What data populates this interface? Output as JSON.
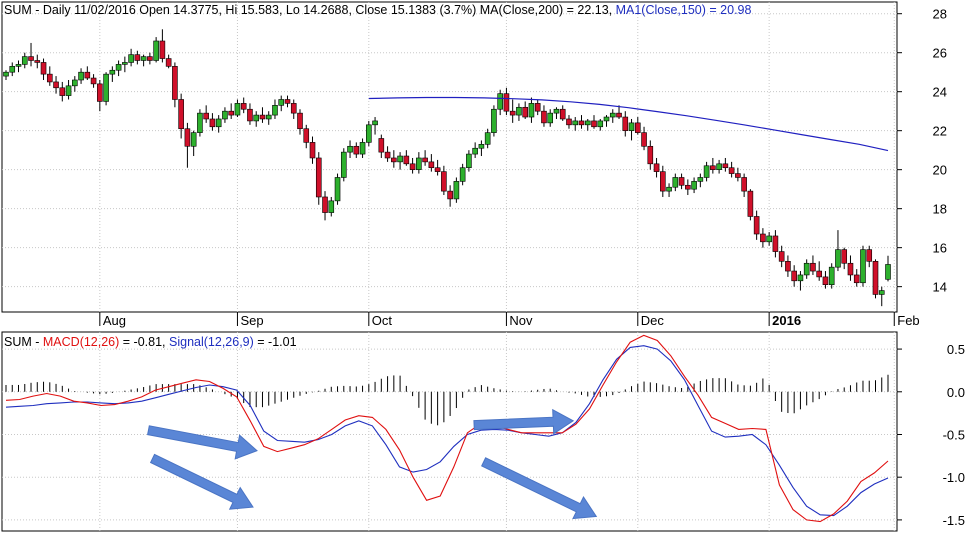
{
  "colors": {
    "up": "#2db02d",
    "down": "#d0102a",
    "ma150": "#2020c0",
    "macd": "#e01010",
    "signal": "#1f2fbf",
    "hist": "#000000",
    "grid": "#c8c8c8",
    "arrow": "#5a86d6"
  },
  "chart_data": [
    {
      "type": "candlestick",
      "symbol": "SUM",
      "header": {
        "prefix": "SUM - Daily 11/02/2016 Open 14.3775, Hi 15.583, Lo 14.2688, Close 15.1383 (3.7%) MA(Close,200) = 22.13, ",
        "ma_label": "MA1(Close,150) = 20.98"
      },
      "ylim": [
        12.7,
        28.6
      ],
      "yticks": [
        14,
        16,
        18,
        20,
        22,
        24,
        26,
        28
      ],
      "x_labels": [
        {
          "label": "Aug",
          "index": 15
        },
        {
          "label": "Sep",
          "index": 37
        },
        {
          "label": "Oct",
          "index": 58
        },
        {
          "label": "Nov",
          "index": 80
        },
        {
          "label": "Dec",
          "index": 101
        },
        {
          "label": "2016",
          "index": 122
        },
        {
          "label": "Feb",
          "index": 142
        }
      ],
      "ohlc": [
        [
          24.8,
          25.1,
          24.6,
          25.0
        ],
        [
          25.0,
          25.5,
          24.8,
          25.3
        ],
        [
          25.3,
          25.6,
          25.0,
          25.4
        ],
        [
          25.4,
          26.0,
          25.2,
          25.8
        ],
        [
          25.8,
          26.5,
          25.3,
          25.6
        ],
        [
          25.6,
          25.9,
          25.2,
          25.5
        ],
        [
          25.5,
          25.7,
          24.6,
          24.9
        ],
        [
          24.9,
          25.3,
          24.3,
          24.5
        ],
        [
          24.5,
          24.8,
          23.9,
          24.2
        ],
        [
          24.2,
          24.5,
          23.5,
          23.8
        ],
        [
          23.8,
          24.6,
          23.6,
          24.3
        ],
        [
          24.3,
          24.8,
          24.0,
          24.6
        ],
        [
          24.6,
          25.2,
          24.4,
          25.0
        ],
        [
          25.0,
          25.3,
          24.6,
          24.7
        ],
        [
          24.7,
          24.9,
          24.2,
          24.4
        ],
        [
          24.4,
          24.6,
          23.0,
          23.5
        ],
        [
          23.5,
          25.0,
          23.3,
          24.9
        ],
        [
          24.9,
          25.3,
          24.5,
          25.1
        ],
        [
          25.1,
          25.6,
          24.8,
          25.4
        ],
        [
          25.4,
          25.8,
          25.0,
          25.5
        ],
        [
          25.5,
          26.2,
          25.3,
          25.9
        ],
        [
          25.9,
          26.1,
          25.4,
          25.6
        ],
        [
          25.6,
          25.9,
          25.3,
          25.8
        ],
        [
          25.8,
          26.0,
          25.4,
          25.6
        ],
        [
          25.6,
          26.8,
          25.5,
          26.6
        ],
        [
          26.6,
          27.2,
          25.5,
          25.7
        ],
        [
          25.7,
          25.9,
          25.2,
          25.3
        ],
        [
          25.3,
          25.5,
          23.2,
          23.6
        ],
        [
          23.6,
          23.9,
          21.6,
          22.1
        ],
        [
          22.1,
          22.4,
          20.1,
          21.2
        ],
        [
          21.2,
          22.0,
          20.7,
          21.9
        ],
        [
          21.9,
          23.1,
          21.7,
          22.9
        ],
        [
          22.9,
          23.3,
          22.4,
          22.6
        ],
        [
          22.6,
          22.9,
          22.0,
          22.2
        ],
        [
          22.2,
          22.8,
          21.9,
          22.6
        ],
        [
          22.6,
          23.2,
          22.4,
          23.0
        ],
        [
          23.0,
          23.4,
          22.6,
          22.8
        ],
        [
          22.8,
          23.6,
          22.7,
          23.4
        ],
        [
          23.4,
          23.7,
          22.9,
          23.1
        ],
        [
          23.1,
          23.4,
          22.3,
          22.5
        ],
        [
          22.5,
          23.0,
          22.2,
          22.8
        ],
        [
          22.8,
          23.2,
          22.4,
          22.6
        ],
        [
          22.6,
          23.0,
          22.3,
          22.8
        ],
        [
          22.8,
          23.6,
          22.6,
          23.3
        ],
        [
          23.3,
          23.8,
          23.0,
          23.6
        ],
        [
          23.6,
          23.8,
          23.2,
          23.4
        ],
        [
          23.4,
          23.6,
          22.6,
          22.9
        ],
        [
          22.9,
          23.1,
          21.8,
          22.1
        ],
        [
          22.1,
          22.3,
          21.1,
          21.4
        ],
        [
          21.4,
          21.7,
          20.3,
          20.6
        ],
        [
          20.6,
          20.9,
          18.2,
          18.6
        ],
        [
          18.6,
          18.9,
          17.4,
          17.8
        ],
        [
          17.8,
          18.6,
          17.6,
          18.4
        ],
        [
          18.4,
          19.8,
          18.2,
          19.6
        ],
        [
          19.6,
          21.1,
          19.4,
          20.9
        ],
        [
          20.9,
          21.5,
          20.6,
          21.2
        ],
        [
          21.2,
          21.4,
          20.6,
          20.8
        ],
        [
          20.8,
          21.6,
          20.6,
          21.4
        ],
        [
          21.4,
          22.5,
          21.2,
          22.3
        ],
        [
          22.3,
          22.7,
          21.8,
          22.5
        ],
        [
          21.6,
          21.8,
          20.6,
          20.9
        ],
        [
          20.9,
          21.2,
          20.4,
          20.6
        ],
        [
          20.6,
          21.0,
          20.1,
          20.4
        ],
        [
          20.4,
          20.9,
          20.0,
          20.7
        ],
        [
          20.7,
          21.0,
          20.2,
          20.3
        ],
        [
          20.3,
          20.6,
          19.8,
          20.0
        ],
        [
          20.0,
          20.9,
          19.8,
          20.6
        ],
        [
          20.6,
          21.0,
          20.2,
          20.4
        ],
        [
          20.4,
          20.8,
          19.9,
          20.1
        ],
        [
          20.1,
          20.5,
          19.7,
          19.9
        ],
        [
          19.9,
          20.2,
          18.7,
          18.9
        ],
        [
          18.9,
          19.2,
          18.1,
          18.5
        ],
        [
          18.5,
          19.6,
          18.3,
          19.4
        ],
        [
          19.4,
          20.3,
          19.2,
          20.1
        ],
        [
          20.1,
          21.0,
          19.9,
          20.8
        ],
        [
          20.8,
          21.4,
          20.6,
          21.1
        ],
        [
          21.1,
          21.5,
          20.7,
          21.3
        ],
        [
          21.3,
          22.1,
          21.1,
          21.9
        ],
        [
          21.9,
          23.3,
          21.7,
          23.1
        ],
        [
          23.1,
          24.1,
          22.8,
          23.9
        ],
        [
          23.9,
          24.2,
          22.8,
          23.0
        ],
        [
          23.0,
          23.6,
          22.4,
          22.8
        ],
        [
          22.8,
          23.4,
          22.5,
          23.2
        ],
        [
          23.2,
          23.5,
          22.6,
          22.7
        ],
        [
          22.7,
          23.7,
          22.4,
          23.4
        ],
        [
          23.4,
          23.6,
          22.8,
          23.0
        ],
        [
          23.0,
          23.3,
          22.2,
          22.4
        ],
        [
          22.4,
          23.1,
          22.2,
          22.9
        ],
        [
          22.9,
          23.2,
          22.6,
          23.1
        ],
        [
          23.1,
          23.3,
          22.5,
          22.6
        ],
        [
          22.6,
          22.8,
          22.1,
          22.3
        ],
        [
          22.3,
          22.7,
          22.0,
          22.5
        ],
        [
          22.5,
          22.8,
          22.1,
          22.3
        ],
        [
          22.3,
          22.6,
          22.0,
          22.5
        ],
        [
          22.5,
          22.8,
          22.1,
          22.2
        ],
        [
          22.2,
          22.6,
          22.0,
          22.5
        ],
        [
          22.5,
          22.8,
          22.2,
          22.7
        ],
        [
          22.7,
          23.1,
          22.4,
          22.9
        ],
        [
          22.9,
          23.3,
          22.6,
          22.7
        ],
        [
          22.7,
          23.0,
          21.7,
          22.0
        ],
        [
          22.0,
          22.6,
          21.5,
          22.4
        ],
        [
          22.4,
          22.7,
          21.8,
          21.9
        ],
        [
          21.9,
          22.2,
          21.0,
          21.2
        ],
        [
          21.2,
          21.5,
          20.0,
          20.3
        ],
        [
          20.3,
          20.6,
          19.6,
          19.9
        ],
        [
          19.9,
          20.2,
          18.6,
          18.9
        ],
        [
          18.9,
          19.3,
          18.6,
          19.1
        ],
        [
          19.1,
          19.8,
          18.9,
          19.6
        ],
        [
          19.6,
          19.8,
          19.0,
          19.2
        ],
        [
          19.2,
          19.5,
          18.7,
          19.0
        ],
        [
          19.0,
          19.6,
          18.8,
          19.4
        ],
        [
          19.4,
          19.8,
          19.1,
          19.6
        ],
        [
          19.6,
          20.4,
          19.4,
          20.2
        ],
        [
          20.2,
          20.6,
          19.8,
          20.0
        ],
        [
          20.0,
          20.5,
          19.8,
          20.3
        ],
        [
          20.3,
          20.6,
          19.9,
          20.1
        ],
        [
          20.1,
          20.4,
          19.6,
          19.8
        ],
        [
          19.8,
          20.1,
          19.4,
          19.6
        ],
        [
          19.6,
          19.8,
          18.6,
          18.9
        ],
        [
          18.9,
          19.0,
          17.4,
          17.6
        ],
        [
          17.6,
          17.9,
          16.4,
          16.7
        ],
        [
          16.7,
          17.0,
          16.0,
          16.3
        ],
        [
          16.3,
          16.8,
          16.1,
          16.6
        ],
        [
          16.6,
          16.9,
          15.5,
          15.8
        ],
        [
          15.8,
          16.1,
          15.0,
          15.3
        ],
        [
          15.3,
          15.6,
          14.5,
          14.8
        ],
        [
          14.8,
          15.1,
          14.0,
          14.3
        ],
        [
          14.3,
          14.8,
          13.8,
          14.6
        ],
        [
          14.6,
          15.4,
          14.4,
          15.2
        ],
        [
          15.2,
          15.6,
          14.6,
          14.8
        ],
        [
          14.8,
          15.3,
          14.3,
          14.5
        ],
        [
          14.5,
          14.8,
          13.9,
          14.1
        ],
        [
          14.1,
          15.2,
          13.9,
          15.0
        ],
        [
          15.0,
          16.9,
          14.8,
          15.9
        ],
        [
          15.9,
          16.0,
          14.9,
          15.2
        ],
        [
          15.2,
          15.6,
          14.3,
          14.6
        ],
        [
          14.6,
          14.9,
          14.0,
          14.2
        ],
        [
          14.2,
          16.1,
          14.0,
          15.9
        ],
        [
          15.9,
          16.1,
          15.0,
          15.3
        ],
        [
          15.3,
          15.4,
          13.4,
          13.6
        ],
        [
          13.6,
          14.0,
          13.0,
          13.8
        ],
        [
          14.3775,
          15.583,
          14.2688,
          15.1383
        ]
      ],
      "ma150": {
        "start_index": 58,
        "values": [
          23.65,
          23.68,
          23.7,
          23.7,
          23.68,
          23.64,
          23.58,
          23.48,
          23.35,
          23.18,
          22.98,
          22.77,
          22.54,
          22.3,
          22.05,
          21.8,
          21.55,
          21.3,
          20.98
        ]
      },
      "title": "",
      "xlabel": "",
      "ylabel": ""
    },
    {
      "type": "line",
      "header": {
        "prefix": "SUM - ",
        "macd_label": "MACD(12,26)",
        "macd_value": " = -0.81, ",
        "signal_label": "Signal(12,26,9)",
        "signal_value": " = -1.01"
      },
      "ylim": [
        -1.63,
        0.7
      ],
      "yticks": [
        -1.5,
        -1.0,
        -0.5,
        0.0,
        0.5
      ],
      "ytick_labels": [
        "-1.5",
        "-1.0",
        "-0.5",
        "0.0",
        "0.5"
      ],
      "series": [
        {
          "name": "MACD(12,26)",
          "values": [
            -0.1,
            -0.09,
            -0.05,
            -0.02,
            -0.05,
            -0.11,
            -0.13,
            -0.16,
            -0.15,
            -0.11,
            -0.06,
            0.02,
            0.06,
            0.1,
            0.14,
            0.12,
            0.04,
            -0.06,
            -0.34,
            -0.64,
            -0.7,
            -0.66,
            -0.62,
            -0.55,
            -0.44,
            -0.33,
            -0.28,
            -0.3,
            -0.44,
            -0.68,
            -1.0,
            -1.27,
            -1.22,
            -0.88,
            -0.48,
            -0.37,
            -0.4,
            -0.44,
            -0.48,
            -0.48,
            -0.48,
            -0.48,
            -0.38,
            -0.2,
            0.08,
            0.35,
            0.58,
            0.66,
            0.6,
            0.42,
            0.18,
            -0.04,
            -0.3,
            -0.37,
            -0.44,
            -0.43,
            -0.44,
            -1.09,
            -1.38,
            -1.5,
            -1.52,
            -1.43,
            -1.28,
            -1.05,
            -0.95,
            -0.81
          ]
        },
        {
          "name": "Signal(12,26,9)",
          "values": [
            -0.18,
            -0.17,
            -0.16,
            -0.14,
            -0.13,
            -0.12,
            -0.12,
            -0.13,
            -0.14,
            -0.13,
            -0.11,
            -0.07,
            -0.03,
            0.01,
            0.05,
            0.08,
            0.06,
            0.02,
            -0.16,
            -0.46,
            -0.57,
            -0.58,
            -0.59,
            -0.56,
            -0.5,
            -0.4,
            -0.34,
            -0.4,
            -0.62,
            -0.88,
            -0.94,
            -0.91,
            -0.82,
            -0.64,
            -0.5,
            -0.45,
            -0.44,
            -0.45,
            -0.48,
            -0.5,
            -0.52,
            -0.48,
            -0.36,
            -0.14,
            0.14,
            0.38,
            0.52,
            0.54,
            0.5,
            0.36,
            0.14,
            -0.16,
            -0.46,
            -0.53,
            -0.52,
            -0.5,
            -0.62,
            -0.86,
            -1.12,
            -1.34,
            -1.44,
            -1.45,
            -1.34,
            -1.18,
            -1.08,
            -1.01
          ]
        }
      ],
      "arrows": [
        {
          "from": [
            10.5,
            -0.45
          ],
          "to": [
            18.5,
            -0.69
          ]
        },
        {
          "from": [
            10.8,
            -0.78
          ],
          "to": [
            18.2,
            -1.35
          ]
        },
        {
          "from": [
            34.5,
            -0.39
          ],
          "to": [
            41.8,
            -0.34
          ]
        },
        {
          "from": [
            35.2,
            -0.82
          ],
          "to": [
            43.5,
            -1.46
          ]
        }
      ],
      "x_points": 66,
      "title": "",
      "xlabel": "",
      "ylabel": ""
    }
  ]
}
